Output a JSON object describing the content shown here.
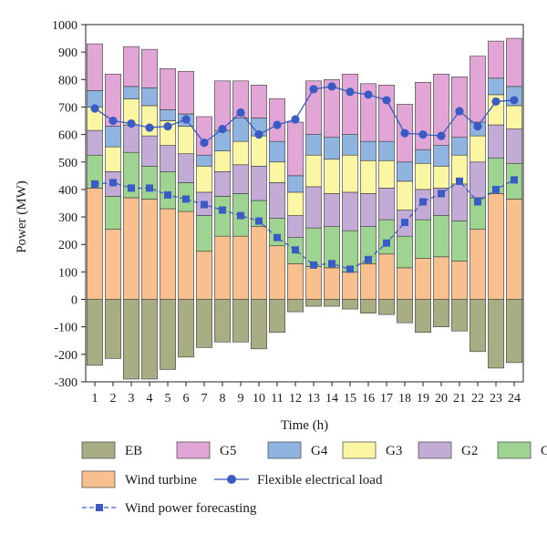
{
  "chart_data": {
    "type": "bar",
    "stacked": true,
    "xlabel": "Time (h)",
    "ylabel": "Power (MW)",
    "ylim": [
      -300,
      1000
    ],
    "yticks": [
      -300,
      -200,
      -100,
      0,
      100,
      200,
      300,
      400,
      500,
      600,
      700,
      800,
      900,
      1000
    ],
    "categories": [
      "1",
      "2",
      "3",
      "4",
      "5",
      "6",
      "7",
      "8",
      "9",
      "10",
      "11",
      "12",
      "13",
      "14",
      "15",
      "16",
      "17",
      "18",
      "19",
      "20",
      "21",
      "22",
      "23",
      "24"
    ],
    "legend_position": "bottom",
    "stack_order": [
      "Wind turbine",
      "G1",
      "G2",
      "G3",
      "G4",
      "G5"
    ],
    "series": [
      {
        "name": "EB",
        "kind": "bar",
        "color": "#a8ad84",
        "values": [
          -240,
          -215,
          -290,
          -290,
          -255,
          -210,
          -175,
          -155,
          -155,
          -180,
          -120,
          -45,
          -25,
          -25,
          -35,
          -50,
          -55,
          -85,
          -120,
          -100,
          -115,
          -190,
          -250,
          -230
        ]
      },
      {
        "name": "G5",
        "kind": "bar",
        "color": "#e2a6d6",
        "values": [
          170,
          190,
          145,
          140,
          150,
          155,
          140,
          180,
          135,
          120,
          155,
          195,
          195,
          210,
          220,
          210,
          205,
          210,
          245,
          260,
          220,
          240,
          135,
          175
        ]
      },
      {
        "name": "G4",
        "kind": "bar",
        "color": "#8fb4e0",
        "values": [
          60,
          75,
          45,
          65,
          40,
          45,
          40,
          75,
          85,
          65,
          75,
          60,
          75,
          80,
          75,
          70,
          70,
          70,
          50,
          75,
          65,
          50,
          60,
          70
        ]
      },
      {
        "name": "G3",
        "kind": "bar",
        "color": "#fbf6a4",
        "values": [
          85,
          90,
          95,
          110,
          90,
          100,
          95,
          75,
          85,
          110,
          75,
          85,
          115,
          125,
          135,
          120,
          100,
          105,
          95,
          80,
          105,
          95,
          110,
          85
        ]
      },
      {
        "name": "G2",
        "kind": "bar",
        "color": "#c2acd6",
        "values": [
          90,
          90,
          100,
          110,
          95,
          105,
          85,
          90,
          105,
          125,
          130,
          80,
          150,
          120,
          140,
          120,
          115,
          95,
          110,
          100,
          135,
          130,
          120,
          125
        ]
      },
      {
        "name": "G1",
        "kind": "bar",
        "color": "#9fd391",
        "values": [
          120,
          120,
          165,
          120,
          135,
          105,
          130,
          145,
          155,
          95,
          100,
          95,
          140,
          150,
          150,
          135,
          125,
          115,
          140,
          150,
          145,
          115,
          130,
          130
        ]
      },
      {
        "name": "Wind turbine",
        "kind": "bar",
        "color": "#f8c08f",
        "values": [
          405,
          255,
          370,
          365,
          330,
          320,
          175,
          230,
          230,
          265,
          195,
          130,
          120,
          115,
          100,
          130,
          165,
          115,
          150,
          155,
          140,
          255,
          385,
          365
        ]
      },
      {
        "name": "Flexible electrical load",
        "kind": "line",
        "marker": "circle",
        "color": "#3b5bc4",
        "values": [
          695,
          650,
          640,
          625,
          630,
          655,
          570,
          620,
          680,
          600,
          635,
          655,
          765,
          775,
          755,
          745,
          725,
          605,
          600,
          595,
          685,
          630,
          720,
          725
        ]
      },
      {
        "name": "Wind power forecasting",
        "kind": "line",
        "marker": "square",
        "dashed": true,
        "color": "#3b5bc4",
        "values": [
          420,
          425,
          405,
          405,
          380,
          365,
          345,
          325,
          305,
          285,
          225,
          180,
          125,
          130,
          110,
          145,
          205,
          280,
          355,
          385,
          430,
          355,
          400,
          435
        ]
      }
    ]
  }
}
